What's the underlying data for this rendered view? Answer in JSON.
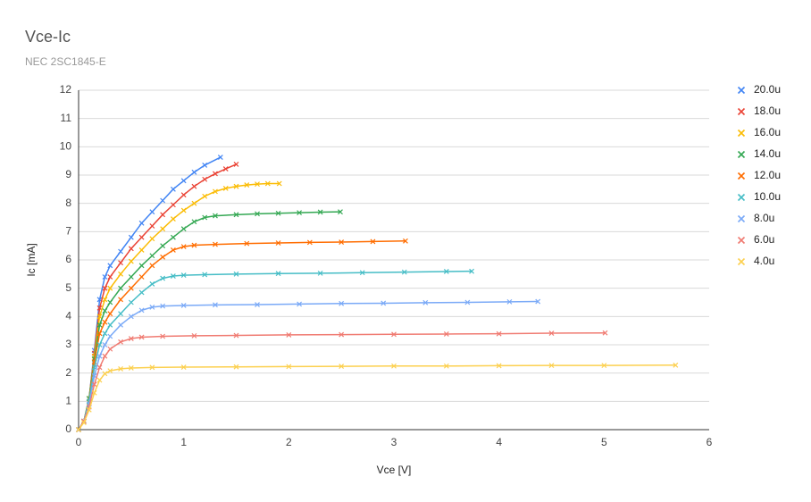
{
  "chart_data": {
    "type": "scatter",
    "title": "Vce-Ic",
    "subtitle": "NEC 2SC1845-E",
    "x_label": "Vce [V]",
    "y_label": "Ic [mA]",
    "xlim": [
      0,
      6
    ],
    "xticks": [
      0,
      1,
      2,
      3,
      4,
      5,
      6
    ],
    "ylim": [
      0,
      12
    ],
    "yticks": [
      0,
      1,
      2,
      3,
      4,
      5,
      6,
      7,
      8,
      9,
      10,
      11,
      12
    ],
    "grid": true,
    "legend": "right",
    "series": [
      {
        "name": "20.0u",
        "color": "#4285f4",
        "x": [
          0,
          0.05,
          0.1,
          0.15,
          0.2,
          0.25,
          0.3,
          0.4,
          0.5,
          0.6,
          0.7,
          0.8,
          0.9,
          1.0,
          1.1,
          1.2,
          1.35
        ],
        "values": [
          0,
          0.3,
          1.1,
          2.8,
          4.6,
          5.4,
          5.8,
          6.3,
          6.8,
          7.3,
          7.7,
          8.1,
          8.5,
          8.8,
          9.1,
          9.35,
          9.63
        ]
      },
      {
        "name": "18.0u",
        "color": "#ea4335",
        "x": [
          0,
          0.05,
          0.1,
          0.15,
          0.2,
          0.25,
          0.3,
          0.4,
          0.5,
          0.6,
          0.7,
          0.8,
          0.9,
          1.0,
          1.1,
          1.2,
          1.3,
          1.4,
          1.5
        ],
        "values": [
          0,
          0.3,
          1.1,
          2.7,
          4.3,
          5.0,
          5.4,
          5.9,
          6.4,
          6.8,
          7.2,
          7.6,
          7.95,
          8.3,
          8.6,
          8.85,
          9.05,
          9.22,
          9.38
        ]
      },
      {
        "name": "16.0u",
        "color": "#fbbc04",
        "x": [
          0,
          0.05,
          0.1,
          0.15,
          0.2,
          0.25,
          0.3,
          0.4,
          0.5,
          0.6,
          0.7,
          0.8,
          0.9,
          1.0,
          1.1,
          1.2,
          1.3,
          1.4,
          1.5,
          1.6,
          1.7,
          1.8,
          1.91
        ],
        "values": [
          0,
          0.3,
          1.1,
          2.6,
          4.0,
          4.6,
          5.0,
          5.5,
          5.95,
          6.35,
          6.75,
          7.1,
          7.45,
          7.75,
          8.0,
          8.25,
          8.42,
          8.53,
          8.6,
          8.65,
          8.68,
          8.7,
          8.7
        ]
      },
      {
        "name": "14.0u",
        "color": "#34a853",
        "x": [
          0,
          0.05,
          0.1,
          0.15,
          0.2,
          0.25,
          0.3,
          0.4,
          0.5,
          0.6,
          0.7,
          0.8,
          0.9,
          1.0,
          1.1,
          1.2,
          1.3,
          1.5,
          1.7,
          1.9,
          2.1,
          2.3,
          2.49
        ],
        "values": [
          0,
          0.3,
          1.1,
          2.5,
          3.7,
          4.2,
          4.5,
          5.0,
          5.4,
          5.8,
          6.15,
          6.5,
          6.8,
          7.1,
          7.35,
          7.5,
          7.56,
          7.6,
          7.63,
          7.65,
          7.67,
          7.69,
          7.7
        ]
      },
      {
        "name": "12.0u",
        "color": "#ff6d01",
        "x": [
          0,
          0.05,
          0.1,
          0.15,
          0.2,
          0.25,
          0.3,
          0.4,
          0.5,
          0.6,
          0.7,
          0.8,
          0.9,
          1.0,
          1.1,
          1.3,
          1.6,
          1.9,
          2.2,
          2.5,
          2.8,
          3.11
        ],
        "values": [
          0,
          0.3,
          1.0,
          2.4,
          3.4,
          3.8,
          4.1,
          4.6,
          5.0,
          5.4,
          5.8,
          6.1,
          6.35,
          6.47,
          6.52,
          6.55,
          6.58,
          6.6,
          6.62,
          6.63,
          6.65,
          6.67
        ]
      },
      {
        "name": "10.0u",
        "color": "#46bdc6",
        "x": [
          0,
          0.05,
          0.1,
          0.15,
          0.2,
          0.25,
          0.3,
          0.4,
          0.5,
          0.6,
          0.7,
          0.8,
          0.9,
          1.0,
          1.2,
          1.5,
          1.9,
          2.3,
          2.7,
          3.1,
          3.5,
          3.74
        ],
        "values": [
          0,
          0.3,
          1.0,
          2.2,
          3.0,
          3.4,
          3.7,
          4.1,
          4.5,
          4.85,
          5.15,
          5.35,
          5.43,
          5.46,
          5.48,
          5.5,
          5.52,
          5.53,
          5.55,
          5.57,
          5.59,
          5.6
        ]
      },
      {
        "name": "8.0u",
        "color": "#7baaf7",
        "x": [
          0,
          0.05,
          0.1,
          0.15,
          0.2,
          0.25,
          0.3,
          0.4,
          0.5,
          0.6,
          0.7,
          0.8,
          1.0,
          1.3,
          1.7,
          2.1,
          2.5,
          2.9,
          3.3,
          3.7,
          4.1,
          4.37
        ],
        "values": [
          0,
          0.3,
          0.9,
          1.9,
          2.6,
          3.0,
          3.3,
          3.7,
          4.0,
          4.22,
          4.33,
          4.37,
          4.39,
          4.41,
          4.42,
          4.44,
          4.46,
          4.47,
          4.49,
          4.5,
          4.52,
          4.53
        ]
      },
      {
        "name": "6.0u",
        "color": "#f07b72",
        "x": [
          0,
          0.05,
          0.1,
          0.15,
          0.2,
          0.25,
          0.3,
          0.4,
          0.5,
          0.6,
          0.8,
          1.1,
          1.5,
          2.0,
          2.5,
          3.0,
          3.5,
          4.0,
          4.5,
          5.01
        ],
        "values": [
          0,
          0.3,
          0.8,
          1.6,
          2.2,
          2.6,
          2.85,
          3.1,
          3.22,
          3.27,
          3.3,
          3.32,
          3.33,
          3.35,
          3.36,
          3.37,
          3.38,
          3.39,
          3.41,
          3.42
        ]
      },
      {
        "name": "4.0u",
        "color": "#fcd04f",
        "x": [
          0,
          0.05,
          0.1,
          0.15,
          0.2,
          0.25,
          0.3,
          0.4,
          0.5,
          0.7,
          1.0,
          1.5,
          2.0,
          2.5,
          3.0,
          3.5,
          4.0,
          4.5,
          5.0,
          5.68
        ],
        "values": [
          0,
          0.25,
          0.7,
          1.3,
          1.75,
          1.98,
          2.08,
          2.15,
          2.18,
          2.2,
          2.21,
          2.22,
          2.23,
          2.24,
          2.25,
          2.25,
          2.26,
          2.27,
          2.27,
          2.28
        ]
      }
    ]
  }
}
